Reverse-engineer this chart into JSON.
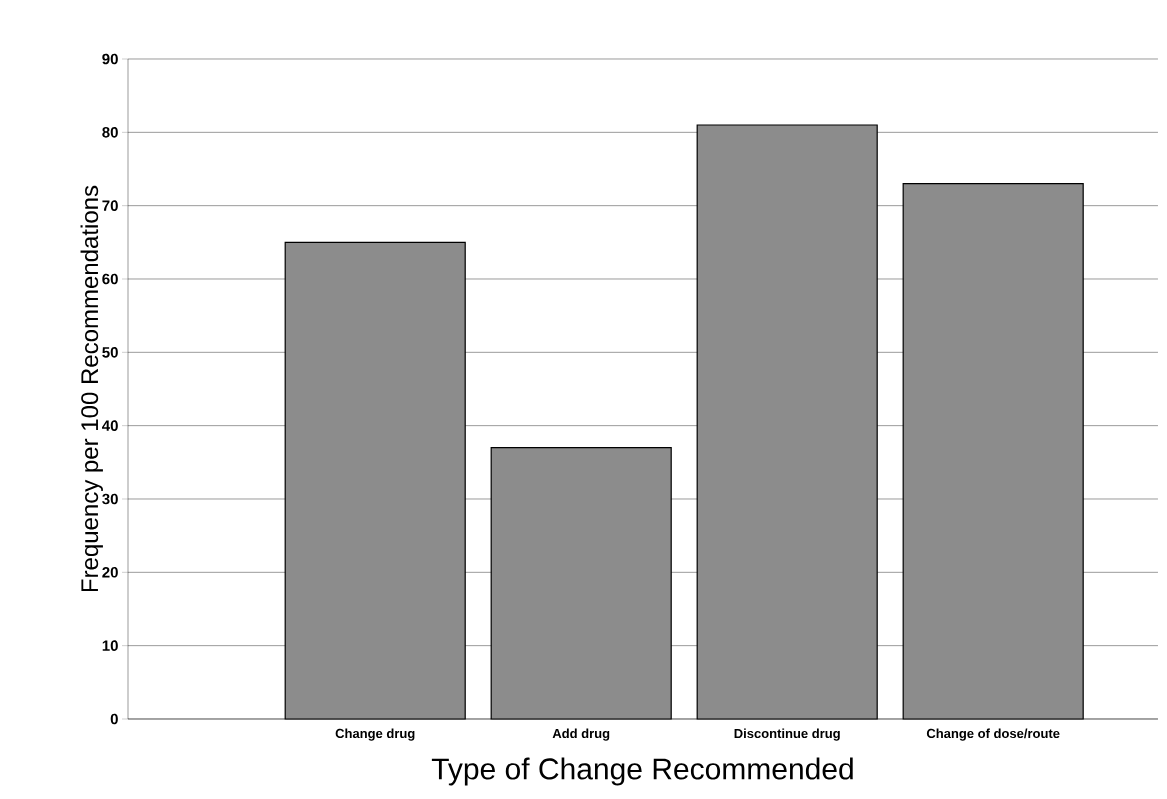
{
  "chart_data": {
    "type": "bar",
    "xlabel": "Type of Change Recommended",
    "ylabel": "Frequency per 100 Recommendations",
    "categories": [
      "Change drug",
      "Add drug",
      "Discontinue drug",
      "Change of dose/route"
    ],
    "values": [
      65,
      37,
      81,
      73
    ],
    "color": "#8c8c8c",
    "ylim": [
      0,
      90
    ],
    "yticks": [
      0,
      10,
      20,
      30,
      40,
      50,
      60,
      70,
      80,
      90
    ],
    "grid": "y"
  }
}
